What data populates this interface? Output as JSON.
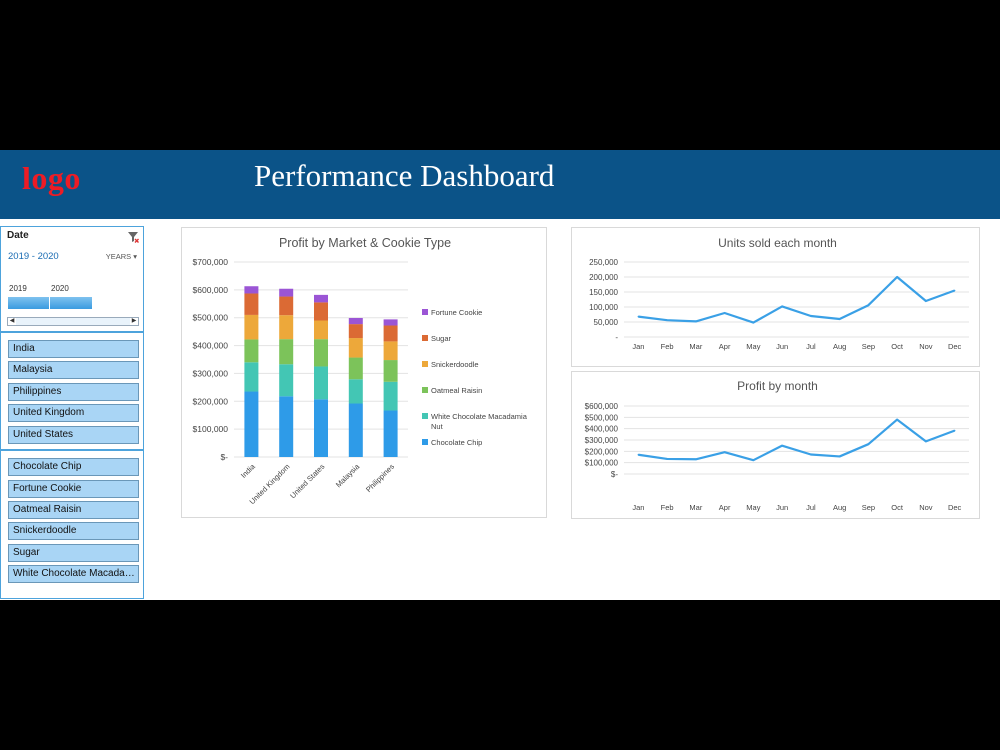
{
  "header": {
    "logo_text": "logo",
    "title": "Performance Dashboard"
  },
  "date_slicer": {
    "label": "Date",
    "range": "2019 - 2020",
    "level": "YEARS",
    "years": [
      "2019",
      "2020"
    ]
  },
  "market_slicer": {
    "items": [
      "India",
      "Malaysia",
      "Philippines",
      "United Kingdom",
      "United States"
    ]
  },
  "cookie_slicer": {
    "items": [
      "Chocolate Chip",
      "Fortune Cookie",
      "Oatmeal Raisin",
      "Snickerdoodle",
      "Sugar",
      "White Chocolate Macadamia Nut"
    ]
  },
  "colors": {
    "header": "#0b5388",
    "logo": "#ee1c25",
    "Chocolate Chip": "#2e9be8",
    "White Chocolate Macadamia Nut": "#43c6b4",
    "Oatmeal Raisin": "#7cc35a",
    "Snickerdoodle": "#eda83a",
    "Sugar": "#db6a34",
    "Fortune Cookie": "#9b55d5",
    "line": "#3aa0e6"
  },
  "chart_data": [
    {
      "id": "profit-by-market",
      "type": "bar",
      "stacked": true,
      "title": "Profit by Market & Cookie Type",
      "categories": [
        "India",
        "United Kingdom",
        "United States",
        "Malaysia",
        "Philippines"
      ],
      "ylim": [
        0,
        700000
      ],
      "yticks": [
        "$-",
        "$100,000",
        "$200,000",
        "$300,000",
        "$400,000",
        "$500,000",
        "$600,000",
        "$700,000"
      ],
      "legend_position": "right",
      "grid": true,
      "series": [
        {
          "name": "Chocolate Chip",
          "values": [
            235000,
            218000,
            207000,
            192000,
            167000
          ]
        },
        {
          "name": "White Chocolate Macadamia Nut",
          "values": [
            105000,
            115000,
            118000,
            87000,
            103000
          ]
        },
        {
          "name": "Oatmeal Raisin",
          "values": [
            82000,
            90000,
            98000,
            78000,
            78000
          ]
        },
        {
          "name": "Snickerdoodle",
          "values": [
            88000,
            86000,
            67000,
            70000,
            67000
          ]
        },
        {
          "name": "Sugar",
          "values": [
            77000,
            67000,
            65000,
            50000,
            57000
          ]
        },
        {
          "name": "Fortune Cookie",
          "values": [
            26000,
            28000,
            27000,
            22000,
            22000
          ]
        }
      ]
    },
    {
      "id": "units-by-month",
      "type": "line",
      "title": "Units sold each month",
      "categories": [
        "Jan",
        "Feb",
        "Mar",
        "Apr",
        "May",
        "Jun",
        "Jul",
        "Aug",
        "Sep",
        "Oct",
        "Nov",
        "Dec"
      ],
      "values": [
        68000,
        56000,
        52000,
        80000,
        48000,
        102000,
        70000,
        60000,
        106000,
        200000,
        120000,
        155000
      ],
      "ylim": [
        0,
        250000
      ],
      "yticks": [
        "-",
        "50,000",
        "100,000",
        "150,000",
        "200,000",
        "250,000"
      ],
      "grid": true
    },
    {
      "id": "profit-by-month",
      "type": "line",
      "title": "Profit by month",
      "categories": [
        "Jan",
        "Feb",
        "Mar",
        "Apr",
        "May",
        "Jun",
        "Jul",
        "Aug",
        "Sep",
        "Oct",
        "Nov",
        "Dec"
      ],
      "values": [
        170000,
        133000,
        130000,
        192000,
        122000,
        250000,
        172000,
        155000,
        263000,
        480000,
        288000,
        383000
      ],
      "ylim": [
        0,
        600000
      ],
      "yticks": [
        "$-",
        "$100,000",
        "$200,000",
        "$300,000",
        "$400,000",
        "$500,000",
        "$600,000"
      ],
      "grid": true
    }
  ]
}
